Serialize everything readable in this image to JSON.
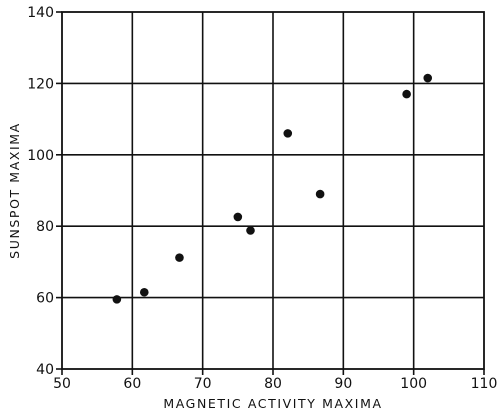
{
  "chart_data": {
    "type": "scatter",
    "title": "",
    "xlabel": "MAGNETIC ACTIVITY MAXIMA",
    "ylabel": "SUNSPOT MAXIMA",
    "xlim": [
      50,
      110
    ],
    "ylim": [
      40,
      140
    ],
    "xticks": [
      50,
      60,
      70,
      80,
      90,
      100,
      110
    ],
    "yticks": [
      40,
      60,
      80,
      100,
      120,
      140
    ],
    "xtick_labels": [
      "50",
      "60",
      "70",
      "80",
      "90",
      "100",
      "110"
    ],
    "ytick_labels": [
      "40",
      "60",
      "80",
      "100",
      "120",
      "140"
    ],
    "grid": true,
    "series": [
      {
        "color": "#111111",
        "points": [
          {
            "x": 57.8,
            "y": 59.5
          },
          {
            "x": 61.7,
            "y": 61.5
          },
          {
            "x": 66.7,
            "y": 71.2
          },
          {
            "x": 75.0,
            "y": 82.6
          },
          {
            "x": 76.8,
            "y": 78.8
          },
          {
            "x": 82.1,
            "y": 106.0
          },
          {
            "x": 86.7,
            "y": 89.0
          },
          {
            "x": 99.0,
            "y": 117.0
          },
          {
            "x": 102.0,
            "y": 121.5
          }
        ]
      }
    ]
  }
}
